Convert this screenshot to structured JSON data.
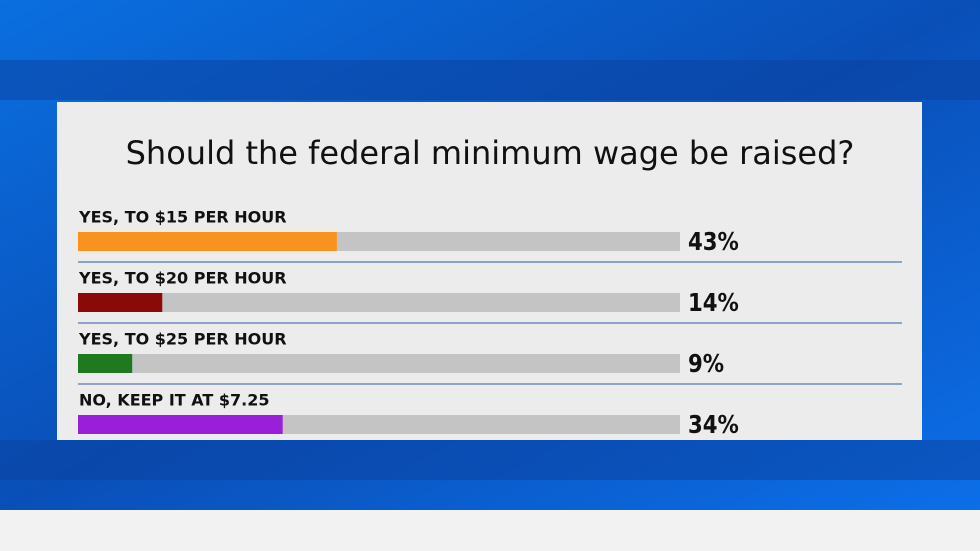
{
  "chart_data": {
    "type": "bar",
    "orientation": "horizontal",
    "title": "Should the federal minimum wage be raised?",
    "categories": [
      "YES, TO $15 PER HOUR",
      "YES, TO $20 PER HOUR",
      "YES, TO $25 PER HOUR",
      "NO, KEEP IT AT $7.25"
    ],
    "values": [
      43,
      14,
      9,
      34
    ],
    "value_labels": [
      "43%",
      "14%",
      "9%",
      "34%"
    ],
    "colors": [
      "#f7931e",
      "#8a0a0a",
      "#1f7a1f",
      "#9a1fd8"
    ],
    "xlim": [
      0,
      100
    ]
  }
}
